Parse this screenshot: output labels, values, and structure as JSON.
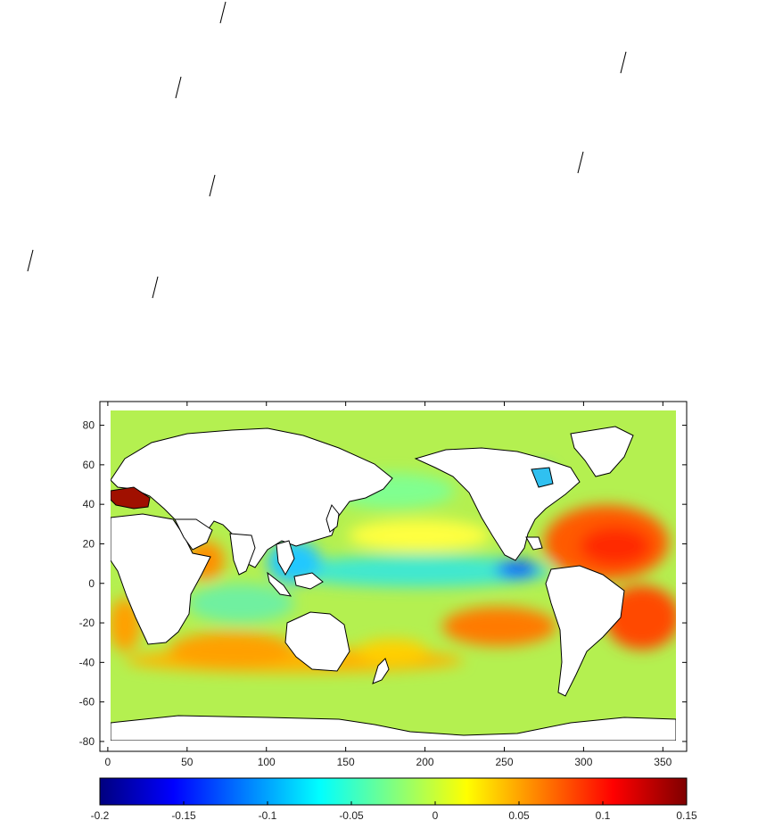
{
  "map": {
    "x_ticks": [
      "0",
      "50",
      "100",
      "150",
      "200",
      "250",
      "300",
      "350"
    ],
    "y_ticks": [
      "80",
      "60",
      "40",
      "20",
      "0",
      "-20",
      "-40",
      "-60",
      "-80"
    ],
    "colorbar_ticks": [
      "-0.2",
      "-0.15",
      "-0.1",
      "-0.05",
      "0",
      "0.05",
      "0.1",
      "0.15"
    ],
    "x_range": [
      -5,
      365
    ],
    "y_range": [
      -85,
      92
    ],
    "color_range": [
      -0.2,
      0.15
    ],
    "colormap": "jet",
    "ocean_base_color": "#b4f050",
    "land_color": "#ffffff"
  }
}
